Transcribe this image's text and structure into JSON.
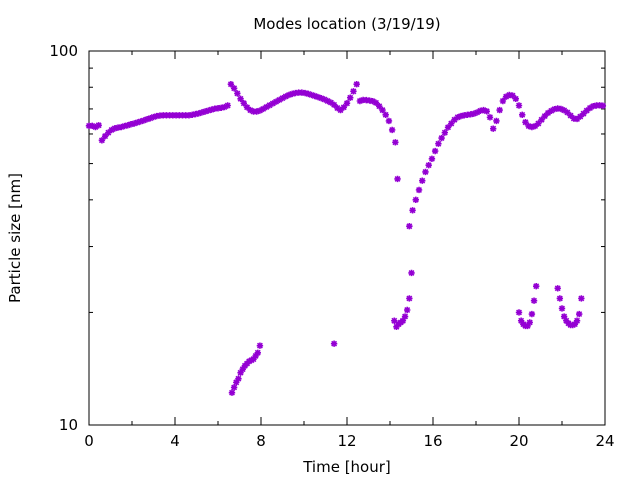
{
  "chart_data": {
    "type": "scatter",
    "title": "Modes location (3/19/19)",
    "xlabel": "Time [hour]",
    "ylabel": "Particle size [nm]",
    "xlim": [
      0,
      24
    ],
    "ylim": [
      10,
      100
    ],
    "yscale": "log",
    "xticks": [
      0,
      4,
      8,
      12,
      16,
      20,
      24
    ],
    "yticks": [
      10,
      100
    ],
    "grid": false,
    "legend": "none",
    "marker_color": "#9400d3",
    "series": [
      {
        "points": [
          [
            0.0,
            63.1
          ],
          [
            0.15,
            63.1
          ],
          [
            0.3,
            62.6
          ],
          [
            0.45,
            63.3
          ],
          [
            0.6,
            57.7
          ],
          [
            0.75,
            59.2
          ],
          [
            0.9,
            60.5
          ],
          [
            1.05,
            61.5
          ],
          [
            1.2,
            62.1
          ],
          [
            1.35,
            62.4
          ],
          [
            1.5,
            62.6
          ],
          [
            1.65,
            63.0
          ],
          [
            1.8,
            63.3
          ],
          [
            1.95,
            63.7
          ],
          [
            2.1,
            64.0
          ],
          [
            2.25,
            64.4
          ],
          [
            2.4,
            64.8
          ],
          [
            2.55,
            65.2
          ],
          [
            2.7,
            65.7
          ],
          [
            2.85,
            66.1
          ],
          [
            3.0,
            66.6
          ],
          [
            3.15,
            67.0
          ],
          [
            3.3,
            67.2
          ],
          [
            3.45,
            67.3
          ],
          [
            3.6,
            67.3
          ],
          [
            3.75,
            67.3
          ],
          [
            3.9,
            67.3
          ],
          [
            4.05,
            67.3
          ],
          [
            4.2,
            67.3
          ],
          [
            4.35,
            67.3
          ],
          [
            4.5,
            67.3
          ],
          [
            4.65,
            67.3
          ],
          [
            4.8,
            67.5
          ],
          [
            4.95,
            67.8
          ],
          [
            5.1,
            68.1
          ],
          [
            5.25,
            68.5
          ],
          [
            5.4,
            68.9
          ],
          [
            5.55,
            69.3
          ],
          [
            5.7,
            69.7
          ],
          [
            5.85,
            70.1
          ],
          [
            6.0,
            70.3
          ],
          [
            6.15,
            70.5
          ],
          [
            6.3,
            70.8
          ],
          [
            6.45,
            71.5
          ],
          [
            6.6,
            81.5
          ],
          [
            6.75,
            79.5
          ],
          [
            6.9,
            77.0
          ],
          [
            7.05,
            74.5
          ],
          [
            7.2,
            72.5
          ],
          [
            7.35,
            70.7
          ],
          [
            7.5,
            69.5
          ],
          [
            7.65,
            68.9
          ],
          [
            7.8,
            68.9
          ],
          [
            7.95,
            69.3
          ],
          [
            8.1,
            70.0
          ],
          [
            8.25,
            70.8
          ],
          [
            8.4,
            71.6
          ],
          [
            8.55,
            72.4
          ],
          [
            8.7,
            73.2
          ],
          [
            8.85,
            74.0
          ],
          [
            9.0,
            74.8
          ],
          [
            9.15,
            75.6
          ],
          [
            9.3,
            76.3
          ],
          [
            9.45,
            76.8
          ],
          [
            9.6,
            77.2
          ],
          [
            9.75,
            77.4
          ],
          [
            9.9,
            77.4
          ],
          [
            10.05,
            77.2
          ],
          [
            10.2,
            76.8
          ],
          [
            10.35,
            76.3
          ],
          [
            10.5,
            75.8
          ],
          [
            10.65,
            75.3
          ],
          [
            10.8,
            74.8
          ],
          [
            10.95,
            74.2
          ],
          [
            11.1,
            73.5
          ],
          [
            11.25,
            72.8
          ],
          [
            11.4,
            71.8
          ],
          [
            11.55,
            70.4
          ],
          [
            11.7,
            69.5
          ],
          [
            11.85,
            70.7
          ],
          [
            12.0,
            72.5
          ],
          [
            12.15,
            75.0
          ],
          [
            12.3,
            78.0
          ],
          [
            12.45,
            81.5
          ],
          [
            12.6,
            73.5
          ],
          [
            12.75,
            74.0
          ],
          [
            12.9,
            73.9
          ],
          [
            13.05,
            73.7
          ],
          [
            13.2,
            73.4
          ],
          [
            13.35,
            72.7
          ],
          [
            13.5,
            71.2
          ],
          [
            13.65,
            69.5
          ],
          [
            13.8,
            67.5
          ],
          [
            13.95,
            65.0
          ],
          [
            14.1,
            61.5
          ],
          [
            14.25,
            57.0
          ],
          [
            14.35,
            45.5
          ],
          [
            14.9,
            34.0
          ],
          [
            15.05,
            37.5
          ],
          [
            15.2,
            40.0
          ],
          [
            15.35,
            42.5
          ],
          [
            15.5,
            45.0
          ],
          [
            15.65,
            47.5
          ],
          [
            15.8,
            49.5
          ],
          [
            15.95,
            51.5
          ],
          [
            16.1,
            54.0
          ],
          [
            16.25,
            56.5
          ],
          [
            16.4,
            58.5
          ],
          [
            16.55,
            60.5
          ],
          [
            16.7,
            62.5
          ],
          [
            16.85,
            64.0
          ],
          [
            17.0,
            65.5
          ],
          [
            17.15,
            66.5
          ],
          [
            17.3,
            67.0
          ],
          [
            17.45,
            67.3
          ],
          [
            17.6,
            67.5
          ],
          [
            17.75,
            67.7
          ],
          [
            17.9,
            68.0
          ],
          [
            18.05,
            68.5
          ],
          [
            18.2,
            69.2
          ],
          [
            18.35,
            69.5
          ],
          [
            18.5,
            69.0
          ],
          [
            18.65,
            66.5
          ],
          [
            18.8,
            62.0
          ],
          [
            18.95,
            65.0
          ],
          [
            19.1,
            69.5
          ],
          [
            19.25,
            73.5
          ],
          [
            19.4,
            75.5
          ],
          [
            19.55,
            76.3
          ],
          [
            19.7,
            76.0
          ],
          [
            19.85,
            74.5
          ],
          [
            20.0,
            71.5
          ],
          [
            20.15,
            67.5
          ],
          [
            20.3,
            64.5
          ],
          [
            20.45,
            63.0
          ],
          [
            20.6,
            62.6
          ],
          [
            20.75,
            63.0
          ],
          [
            20.9,
            64.0
          ],
          [
            21.05,
            65.5
          ],
          [
            21.2,
            67.0
          ],
          [
            21.35,
            68.3
          ],
          [
            21.5,
            69.2
          ],
          [
            21.65,
            69.9
          ],
          [
            21.8,
            70.2
          ],
          [
            21.95,
            70.0
          ],
          [
            22.1,
            69.4
          ],
          [
            22.25,
            68.5
          ],
          [
            22.4,
            67.2
          ],
          [
            22.55,
            66.0
          ],
          [
            22.7,
            65.8
          ],
          [
            22.85,
            66.8
          ],
          [
            23.0,
            68.0
          ],
          [
            23.15,
            69.3
          ],
          [
            23.3,
            70.4
          ],
          [
            23.45,
            71.2
          ],
          [
            23.6,
            71.5
          ],
          [
            23.75,
            71.6
          ],
          [
            23.9,
            71.4
          ]
        ]
      },
      {
        "points": [
          [
            6.65,
            12.2
          ],
          [
            6.75,
            12.6
          ],
          [
            6.85,
            13.0
          ],
          [
            6.95,
            13.3
          ],
          [
            7.05,
            13.8
          ],
          [
            7.15,
            14.1
          ],
          [
            7.25,
            14.4
          ],
          [
            7.35,
            14.6
          ],
          [
            7.45,
            14.8
          ],
          [
            7.55,
            14.9
          ],
          [
            7.65,
            15.0
          ],
          [
            7.75,
            15.3
          ],
          [
            7.85,
            15.6
          ],
          [
            7.95,
            16.3
          ],
          [
            11.4,
            16.5
          ],
          [
            14.2,
            19.0
          ],
          [
            14.3,
            18.3
          ],
          [
            14.4,
            18.6
          ],
          [
            14.5,
            18.8
          ],
          [
            14.6,
            19.0
          ],
          [
            14.7,
            19.5
          ],
          [
            14.8,
            20.3
          ],
          [
            14.9,
            21.8
          ],
          [
            15.0,
            25.5
          ],
          [
            20.0,
            20.0
          ],
          [
            20.1,
            19.0
          ],
          [
            20.2,
            18.6
          ],
          [
            20.3,
            18.4
          ],
          [
            20.4,
            18.4
          ],
          [
            20.5,
            18.8
          ],
          [
            20.6,
            19.8
          ],
          [
            20.7,
            21.5
          ],
          [
            20.8,
            23.5
          ],
          [
            21.8,
            23.2
          ],
          [
            21.9,
            21.8
          ],
          [
            22.0,
            20.5
          ],
          [
            22.1,
            19.5
          ],
          [
            22.2,
            19.0
          ],
          [
            22.3,
            18.7
          ],
          [
            22.4,
            18.5
          ],
          [
            22.5,
            18.5
          ],
          [
            22.6,
            18.6
          ],
          [
            22.7,
            19.0
          ],
          [
            22.8,
            19.8
          ],
          [
            22.9,
            21.8
          ]
        ]
      }
    ]
  }
}
